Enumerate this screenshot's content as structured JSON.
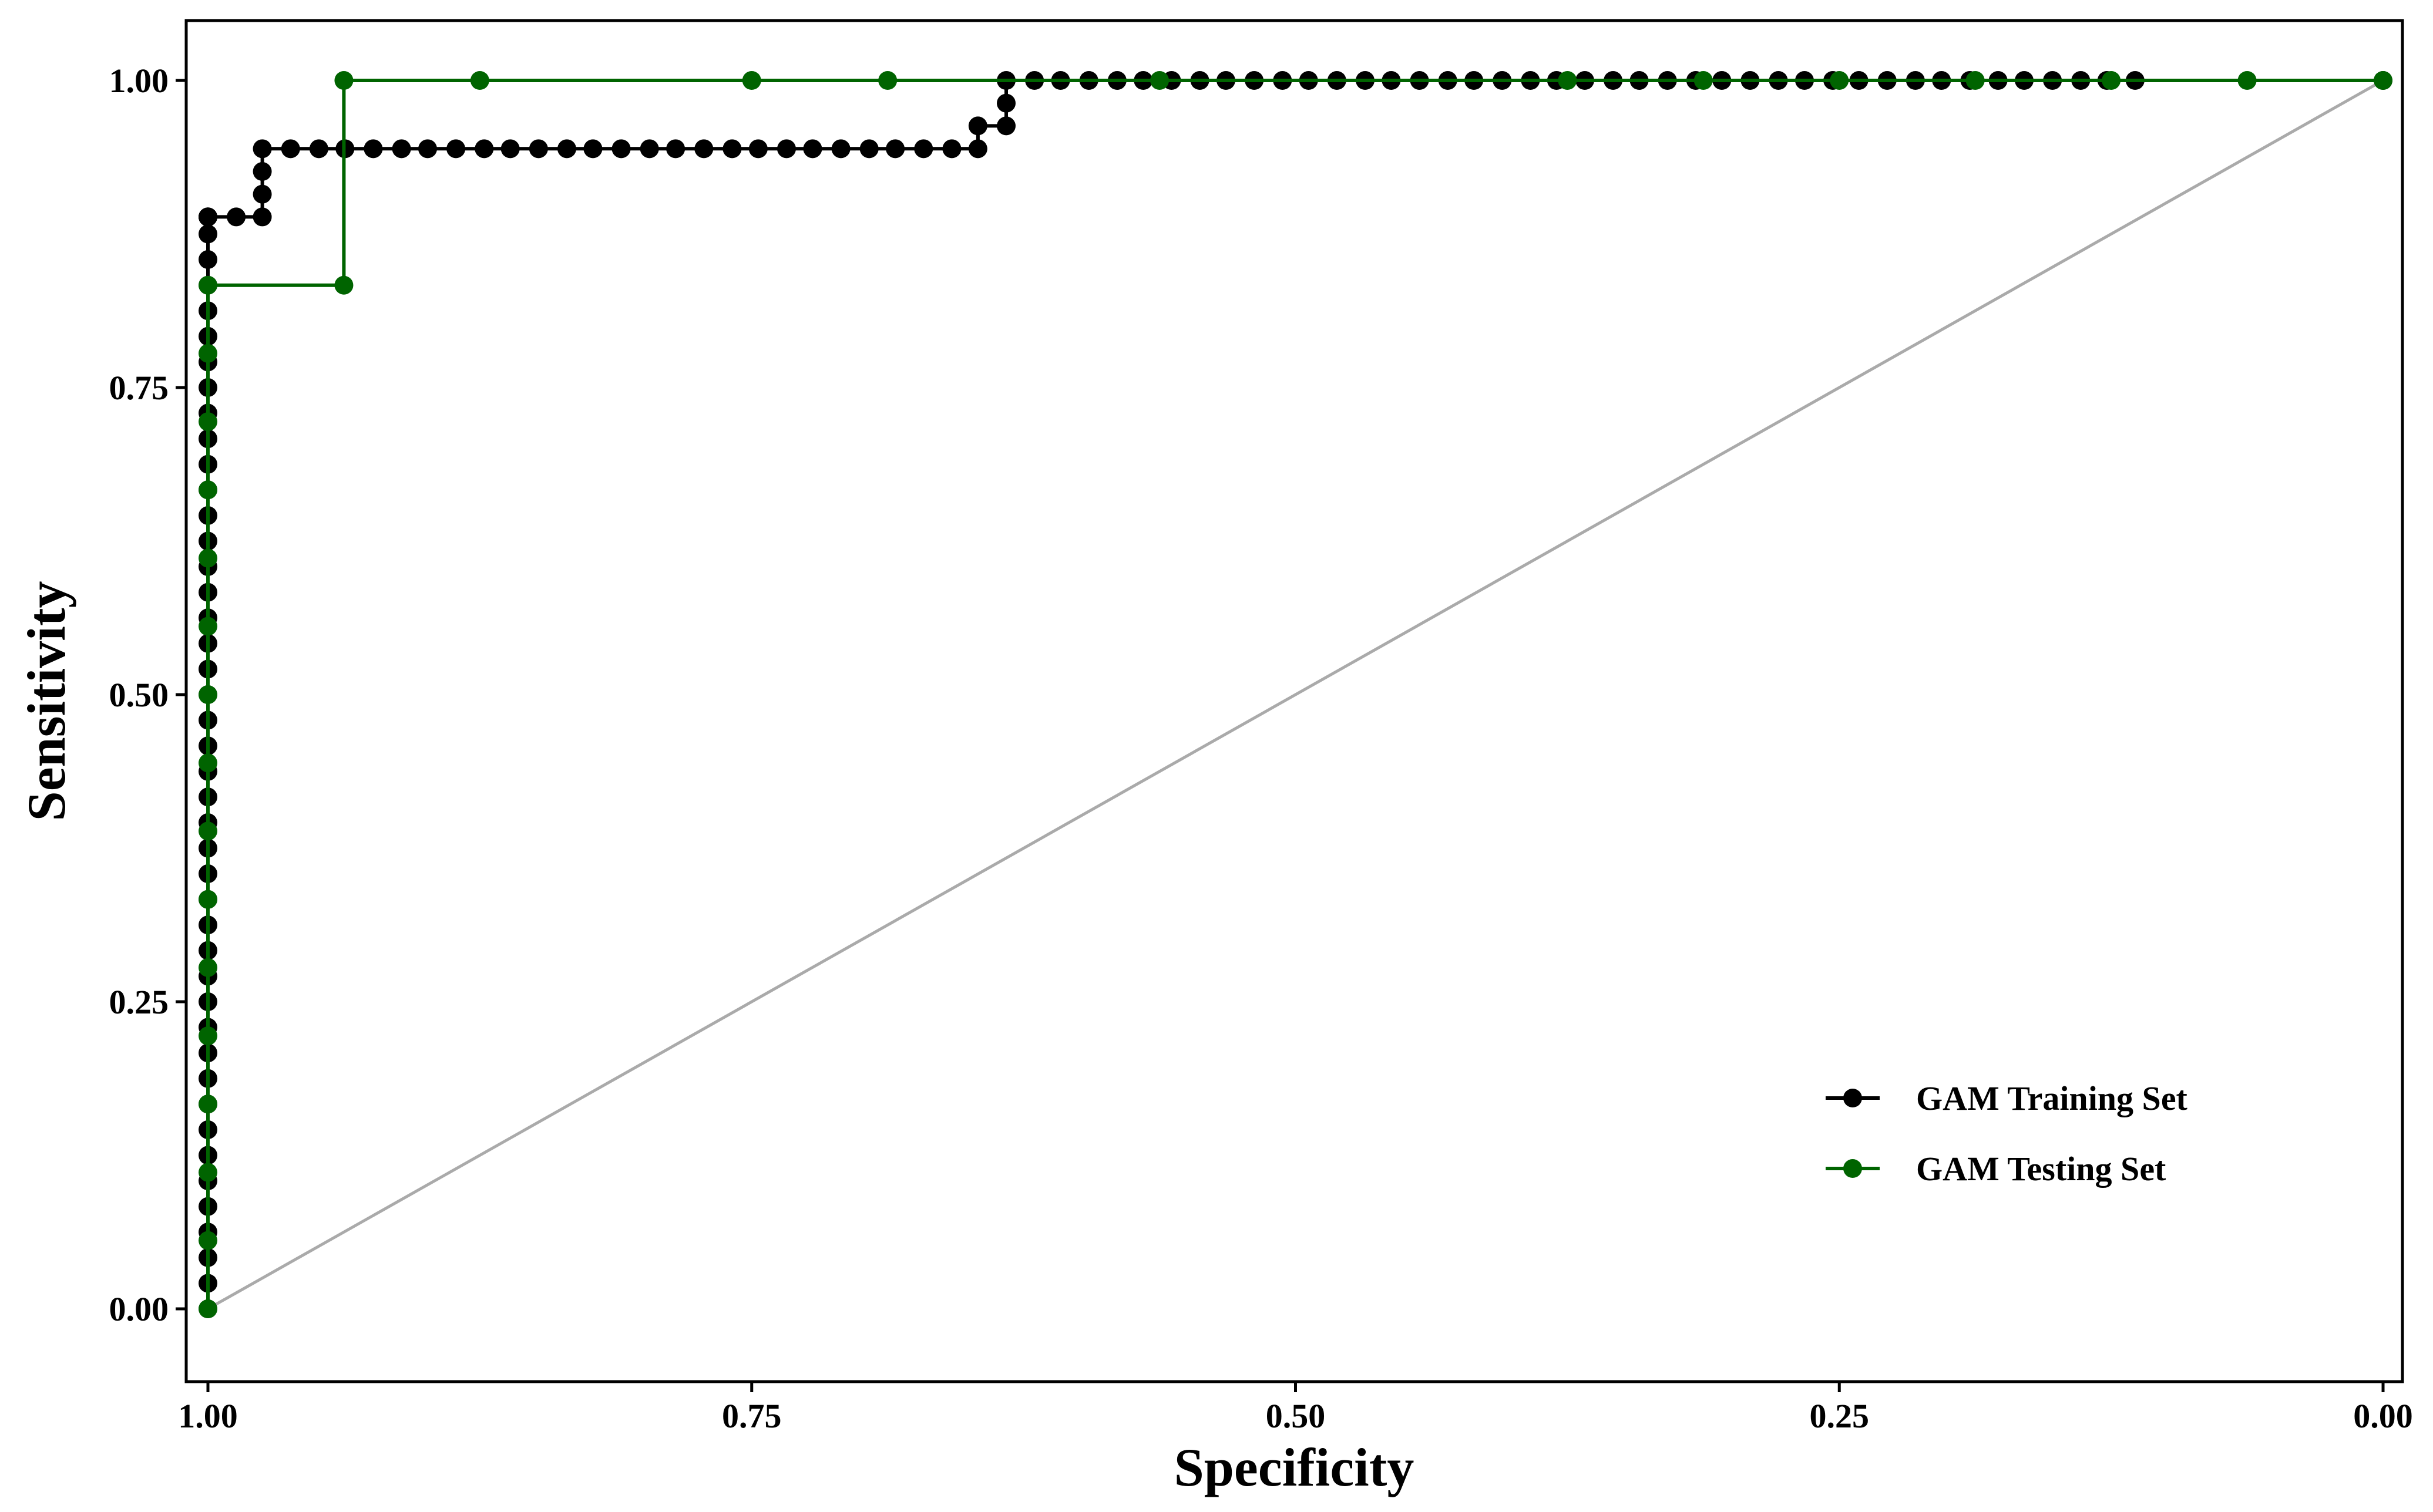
{
  "chart_data": {
    "type": "line",
    "title": "",
    "xlabel": "Specificity",
    "ylabel": "Sensitivity",
    "x_reversed": true,
    "xlim": [
      1.0,
      0.0
    ],
    "ylim": [
      0.0,
      1.0
    ],
    "x_ticks": [
      "1.00",
      "0.75",
      "0.50",
      "0.25",
      "0.00"
    ],
    "y_ticks": [
      "0.00",
      "0.25",
      "0.50",
      "0.75",
      "1.00"
    ],
    "grid": false,
    "legend_position": "bottom-right",
    "reference_line": {
      "from": [
        1.0,
        0.0
      ],
      "to": [
        0.0,
        1.0
      ],
      "color": "#aaaaaa"
    },
    "series": [
      {
        "name": "GAM Training Set",
        "color": "#000000",
        "specificity": [
          1.0,
          1.0,
          1.0,
          1.0,
          1.0,
          1.0,
          1.0,
          1.0,
          1.0,
          1.0,
          1.0,
          1.0,
          1.0,
          1.0,
          1.0,
          1.0,
          1.0,
          1.0,
          1.0,
          1.0,
          1.0,
          1.0,
          1.0,
          1.0,
          1.0,
          1.0,
          1.0,
          1.0,
          1.0,
          1.0,
          1.0,
          1.0,
          1.0,
          1.0,
          1.0,
          1.0,
          1.0,
          1.0,
          1.0,
          1.0,
          1.0,
          1.0,
          1.0,
          1.0,
          1.0,
          1.0,
          1.0,
          1.0,
          1.0,
          0.987,
          0.975,
          0.975,
          0.975,
          0.975,
          0.962,
          0.949,
          0.937,
          0.924,
          0.911,
          0.899,
          0.886,
          0.873,
          0.861,
          0.848,
          0.835,
          0.823,
          0.81,
          0.797,
          0.785,
          0.772,
          0.759,
          0.747,
          0.734,
          0.722,
          0.709,
          0.696,
          0.684,
          0.671,
          0.658,
          0.646,
          0.646,
          0.633,
          0.633,
          0.633,
          0.62,
          0.608,
          0.595,
          0.582,
          0.57,
          0.557,
          0.544,
          0.532,
          0.519,
          0.506,
          0.494,
          0.481,
          0.468,
          0.456,
          0.443,
          0.43,
          0.418,
          0.405,
          0.392,
          0.38,
          0.367,
          0.354,
          0.342,
          0.329,
          0.316,
          0.304,
          0.291,
          0.278,
          0.266,
          0.253,
          0.241,
          0.228,
          0.215,
          0.203,
          0.19,
          0.177,
          0.165,
          0.152,
          0.139,
          0.127,
          0.114,
          0.0
        ],
        "sensitivity": [
          0.0,
          0.0208,
          0.0417,
          0.0625,
          0.0833,
          0.1042,
          0.125,
          0.1458,
          0.1667,
          0.1875,
          0.2083,
          0.2292,
          0.25,
          0.2708,
          0.2917,
          0.3125,
          0.3333,
          0.3542,
          0.375,
          0.3958,
          0.4167,
          0.4375,
          0.4583,
          0.4792,
          0.5,
          0.5208,
          0.5417,
          0.5625,
          0.5833,
          0.6042,
          0.625,
          0.6458,
          0.6667,
          0.6875,
          0.7083,
          0.7292,
          0.75,
          0.7708,
          0.7917,
          0.8125,
          0.8333,
          0.8542,
          0.875,
          0.8889,
          0.8889,
          0.8889,
          0.8889,
          0.8889,
          0.8889,
          0.8889,
          0.8889,
          0.9074,
          0.9259,
          0.9444,
          0.9444,
          0.9444,
          0.9444,
          0.9444,
          0.9444,
          0.9444,
          0.9444,
          0.9444,
          0.9444,
          0.9444,
          0.9444,
          0.9444,
          0.9444,
          0.9444,
          0.9444,
          0.9444,
          0.9444,
          0.9444,
          0.9444,
          0.9444,
          0.9444,
          0.9444,
          0.9444,
          0.9444,
          0.9444,
          0.9444,
          0.963,
          0.963,
          0.9815,
          1.0,
          1.0,
          1.0,
          1.0,
          1.0,
          1.0,
          1.0,
          1.0,
          1.0,
          1.0,
          1.0,
          1.0,
          1.0,
          1.0,
          1.0,
          1.0,
          1.0,
          1.0,
          1.0,
          1.0,
          1.0,
          1.0,
          1.0,
          1.0,
          1.0,
          1.0,
          1.0,
          1.0,
          1.0,
          1.0,
          1.0,
          1.0,
          1.0,
          1.0,
          1.0,
          1.0,
          1.0,
          1.0,
          1.0,
          1.0,
          1.0,
          1.0,
          1.0
        ]
      },
      {
        "name": "GAM Testing Set",
        "color": "#006400",
        "specificity": [
          1.0,
          1.0,
          1.0,
          1.0,
          1.0,
          1.0,
          1.0,
          1.0,
          1.0,
          1.0,
          1.0,
          1.0,
          1.0,
          1.0,
          1.0,
          1.0,
          0.9375,
          0.9375,
          0.875,
          0.75,
          0.6875,
          0.5625,
          0.375,
          0.3125,
          0.25,
          0.1875,
          0.125,
          0.0625,
          0.0
        ],
        "sensitivity": [
          0.0,
          0.0556,
          0.1111,
          0.1667,
          0.2222,
          0.2778,
          0.3333,
          0.3889,
          0.4444,
          0.5,
          0.5556,
          0.6111,
          0.6667,
          0.7222,
          0.7778,
          0.8333,
          0.8333,
          1.0,
          1.0,
          1.0,
          1.0,
          1.0,
          1.0,
          1.0,
          1.0,
          1.0,
          1.0,
          1.0,
          1.0
        ]
      }
    ]
  }
}
